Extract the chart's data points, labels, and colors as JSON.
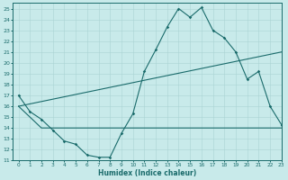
{
  "line1_x": [
    0,
    1,
    2,
    3,
    4,
    5,
    6,
    7,
    8,
    9,
    10,
    11,
    12,
    13,
    14,
    15,
    16,
    17,
    18,
    19,
    20,
    21,
    22,
    23
  ],
  "line1_y": [
    17,
    15.5,
    14.8,
    13.8,
    12.8,
    12.5,
    11.5,
    11.3,
    11.3,
    13.5,
    15.3,
    19.2,
    21.2,
    23.3,
    25.0,
    24.2,
    25.1,
    23.0,
    22.3,
    21.0,
    18.5,
    19.2,
    16.0,
    14.3
  ],
  "line2_x": [
    0,
    23
  ],
  "line2_y": [
    16,
    21.0
  ],
  "line3_x": [
    0,
    2,
    10,
    20,
    23
  ],
  "line3_y": [
    16,
    14,
    14,
    14,
    14
  ],
  "color": "#1a6b6b",
  "bg_color": "#c8eaea",
  "grid_color": "#aad4d4",
  "xlabel": "Humidex (Indice chaleur)",
  "xlim": [
    -0.5,
    23
  ],
  "ylim": [
    11,
    25.5
  ],
  "xticks": [
    0,
    1,
    2,
    3,
    4,
    5,
    6,
    7,
    8,
    9,
    10,
    11,
    12,
    13,
    14,
    15,
    16,
    17,
    18,
    19,
    20,
    21,
    22,
    23
  ],
  "yticks": [
    11,
    12,
    13,
    14,
    15,
    16,
    17,
    18,
    19,
    20,
    21,
    22,
    23,
    24,
    25
  ]
}
